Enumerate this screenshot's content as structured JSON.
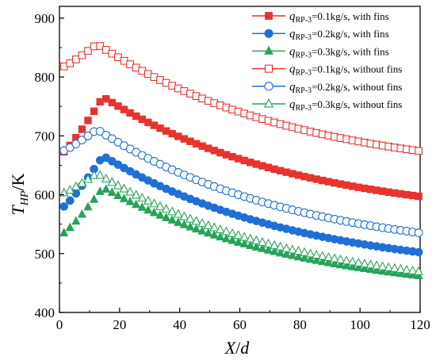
{
  "chart_data": {
    "type": "line",
    "xlabel": "X/d",
    "ylabel": "T_HP/K",
    "ylabel_main": "T",
    "ylabel_sub": "HP",
    "ylabel_rest": "/K",
    "xlabel_main": "X",
    "xlabel_rest": "/",
    "xlabel_d": "d",
    "xlim": [
      0,
      120
    ],
    "ylim": [
      400,
      920
    ],
    "xticks": [
      0,
      20,
      40,
      60,
      80,
      100,
      120
    ],
    "yticks": [
      400,
      500,
      600,
      700,
      800,
      900
    ],
    "grid": false,
    "legend_position": "top-right",
    "legend_q": "q",
    "legend_sub": "RP-3",
    "series": [
      {
        "name": "qRP-3=0.1kg/s, with fins",
        "flow_text": "=0.1kg/s, with fins",
        "color": "#e8332e",
        "marker": "square",
        "filled": true,
        "peak": 766,
        "peak_x": 14.5,
        "start_y": 673,
        "end_y": 597
      },
      {
        "name": "qRP-3=0.2kg/s, with fins",
        "flow_text": "=0.2kg/s, with fins",
        "color": "#1f6fd6",
        "marker": "circle",
        "filled": true,
        "peak": 666,
        "peak_x": 14.5,
        "start_y": 580,
        "end_y": 502
      },
      {
        "name": "qRP-3=0.3kg/s, with fins",
        "flow_text": "=0.3kg/s, with fins",
        "color": "#27a35a",
        "marker": "triangle",
        "filled": true,
        "peak": 612,
        "peak_x": 14.5,
        "start_y": 535,
        "end_y": 462
      },
      {
        "name": "qRP-3=0.1kg/s, without fins",
        "flow_text": "=0.1kg/s, without fins",
        "color": "#e8332e",
        "marker": "square",
        "filled": false,
        "peak": 856,
        "peak_x": 12.5,
        "start_y": 818,
        "end_y": 674
      },
      {
        "name": "qRP-3=0.2kg/s, without fins",
        "flow_text": "=0.2kg/s, without fins",
        "color": "#1f6fd6",
        "marker": "circle",
        "filled": false,
        "peak": 711,
        "peak_x": 12.5,
        "start_y": 675,
        "end_y": 535
      },
      {
        "name": "qRP-3=0.3kg/s, without fins",
        "flow_text": "=0.3kg/s, without fins",
        "color": "#27a35a",
        "marker": "triangle",
        "filled": false,
        "peak": 636,
        "peak_x": 12.5,
        "start_y": 603,
        "end_y": 469
      }
    ]
  }
}
